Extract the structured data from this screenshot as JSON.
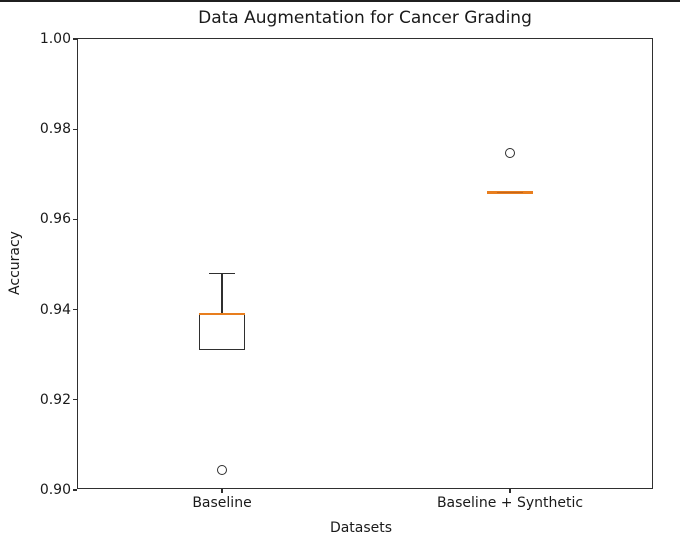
{
  "window": {
    "top_border_color": "#1f1f1f"
  },
  "chart_data": {
    "type": "box",
    "title": "Data Augmentation for Cancer Grading",
    "xlabel": "Datasets",
    "ylabel": "Accuracy",
    "ylim": [
      0.9,
      1.0
    ],
    "grid": false,
    "legend": null,
    "y_ticks": [
      {
        "value": 1.0,
        "label": "1.00"
      },
      {
        "value": 0.98,
        "label": "0.98"
      },
      {
        "value": 0.96,
        "label": "0.96"
      },
      {
        "value": 0.94,
        "label": "0.94"
      },
      {
        "value": 0.92,
        "label": "0.92"
      },
      {
        "value": 0.9,
        "label": "0.90"
      }
    ],
    "categories": [
      "Baseline",
      "Baseline + Synthetic"
    ],
    "groups": [
      {
        "label": "Baseline",
        "whisker_low": 0.931,
        "q1": 0.931,
        "median": 0.939,
        "q3": 0.939,
        "whisker_high": 0.948,
        "fliers": [
          0.9045
        ]
      },
      {
        "label": "Baseline + Synthetic",
        "whisker_low": 0.966,
        "q1": 0.966,
        "median": 0.966,
        "q3": 0.966,
        "whisker_high": 0.966,
        "fliers": [
          0.9748
        ]
      }
    ],
    "colors": {
      "box_line": "#2f2f2f",
      "median": "#e87e1e",
      "median_core": "#c4651a",
      "text": "#1a1a1a",
      "spine": "#2f2f2f"
    }
  }
}
